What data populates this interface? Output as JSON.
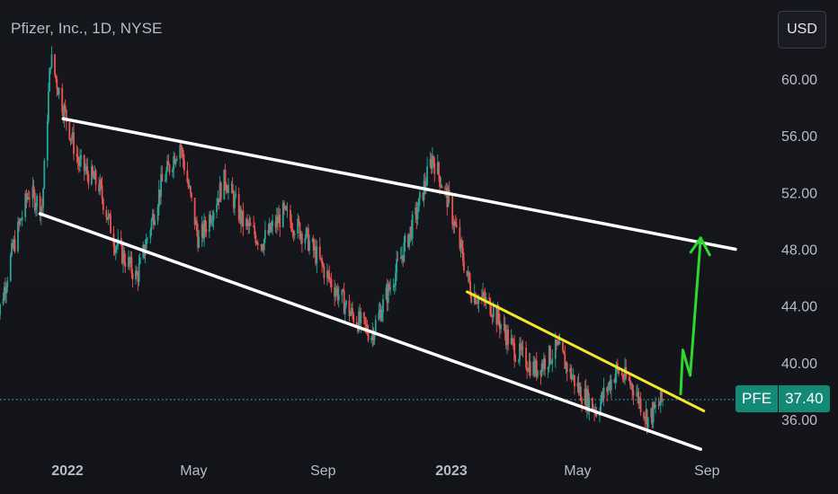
{
  "header": {
    "title": "Pfizer, Inc., 1D, NYSE",
    "currency_button": "USD"
  },
  "price_tag": {
    "symbol": "PFE",
    "value": "37.40"
  },
  "colors": {
    "up": "#26a69a",
    "down": "#ef5350",
    "channel": "#ffffff",
    "resistance": "#f5e62c",
    "projection": "#2fd62f",
    "current_price_line": "#26a69a"
  },
  "chart_data": {
    "type": "candlestick",
    "title": "Pfizer, Inc., 1D, NYSE",
    "xlabel": "",
    "ylabel": "",
    "x_ticks": [
      "2022",
      "May",
      "Sep",
      "2023",
      "May",
      "Sep"
    ],
    "y_ticks": [
      36.0,
      40.0,
      44.0,
      48.0,
      52.0,
      56.0,
      60.0
    ],
    "ylim": [
      33.7,
      63.0
    ],
    "grid": false,
    "current_price": 37.4,
    "close_series_approx": [
      {
        "date": "2021-10-25",
        "close": 42.5
      },
      {
        "date": "2021-11-10",
        "close": 48.0
      },
      {
        "date": "2021-11-25",
        "close": 52.0
      },
      {
        "date": "2021-12-08",
        "close": 51.0
      },
      {
        "date": "2021-12-16",
        "close": 61.5
      },
      {
        "date": "2021-12-28",
        "close": 58.0
      },
      {
        "date": "2022-01-12",
        "close": 54.0
      },
      {
        "date": "2022-01-31",
        "close": 52.5
      },
      {
        "date": "2022-02-15",
        "close": 48.5
      },
      {
        "date": "2022-03-08",
        "close": 46.0
      },
      {
        "date": "2022-03-31",
        "close": 52.5
      },
      {
        "date": "2022-04-18",
        "close": 55.5
      },
      {
        "date": "2022-05-06",
        "close": 48.5
      },
      {
        "date": "2022-05-31",
        "close": 53.0
      },
      {
        "date": "2022-06-16",
        "close": 50.0
      },
      {
        "date": "2022-07-05",
        "close": 48.5
      },
      {
        "date": "2022-07-25",
        "close": 50.5
      },
      {
        "date": "2022-08-15",
        "close": 49.0
      },
      {
        "date": "2022-09-06",
        "close": 46.0
      },
      {
        "date": "2022-09-27",
        "close": 43.5
      },
      {
        "date": "2022-10-17",
        "close": 42.0
      },
      {
        "date": "2022-11-07",
        "close": 46.0
      },
      {
        "date": "2022-11-29",
        "close": 50.5
      },
      {
        "date": "2022-12-14",
        "close": 54.5
      },
      {
        "date": "2022-12-30",
        "close": 51.2
      },
      {
        "date": "2023-01-20",
        "close": 45.0
      },
      {
        "date": "2023-02-08",
        "close": 44.0
      },
      {
        "date": "2023-03-01",
        "close": 41.0
      },
      {
        "date": "2023-03-22",
        "close": 39.5
      },
      {
        "date": "2023-04-12",
        "close": 41.0
      },
      {
        "date": "2023-05-03",
        "close": 38.0
      },
      {
        "date": "2023-05-19",
        "close": 36.7
      },
      {
        "date": "2023-06-07",
        "close": 39.5
      },
      {
        "date": "2023-06-23",
        "close": 38.3
      },
      {
        "date": "2023-07-07",
        "close": 36.0
      },
      {
        "date": "2023-07-21",
        "close": 37.4
      }
    ],
    "annotations": {
      "channel_upper": [
        {
          "date": "2021-12-28",
          "price": 57.2
        },
        {
          "date": "2023-09-28",
          "price": 48.0
        }
      ],
      "channel_lower": [
        {
          "date": "2021-12-06",
          "price": 50.5
        },
        {
          "date": "2023-08-26",
          "price": 33.9
        }
      ],
      "resistance_line": [
        {
          "date": "2023-01-16",
          "price": 45.0
        },
        {
          "date": "2023-08-29",
          "price": 36.6
        }
      ],
      "projection_path": [
        {
          "date": "2023-08-07",
          "price": 37.8
        },
        {
          "date": "2023-08-09",
          "price": 40.9
        },
        {
          "date": "2023-08-16",
          "price": 39.1
        },
        {
          "date": "2023-08-26",
          "price": 48.8
        }
      ]
    }
  }
}
